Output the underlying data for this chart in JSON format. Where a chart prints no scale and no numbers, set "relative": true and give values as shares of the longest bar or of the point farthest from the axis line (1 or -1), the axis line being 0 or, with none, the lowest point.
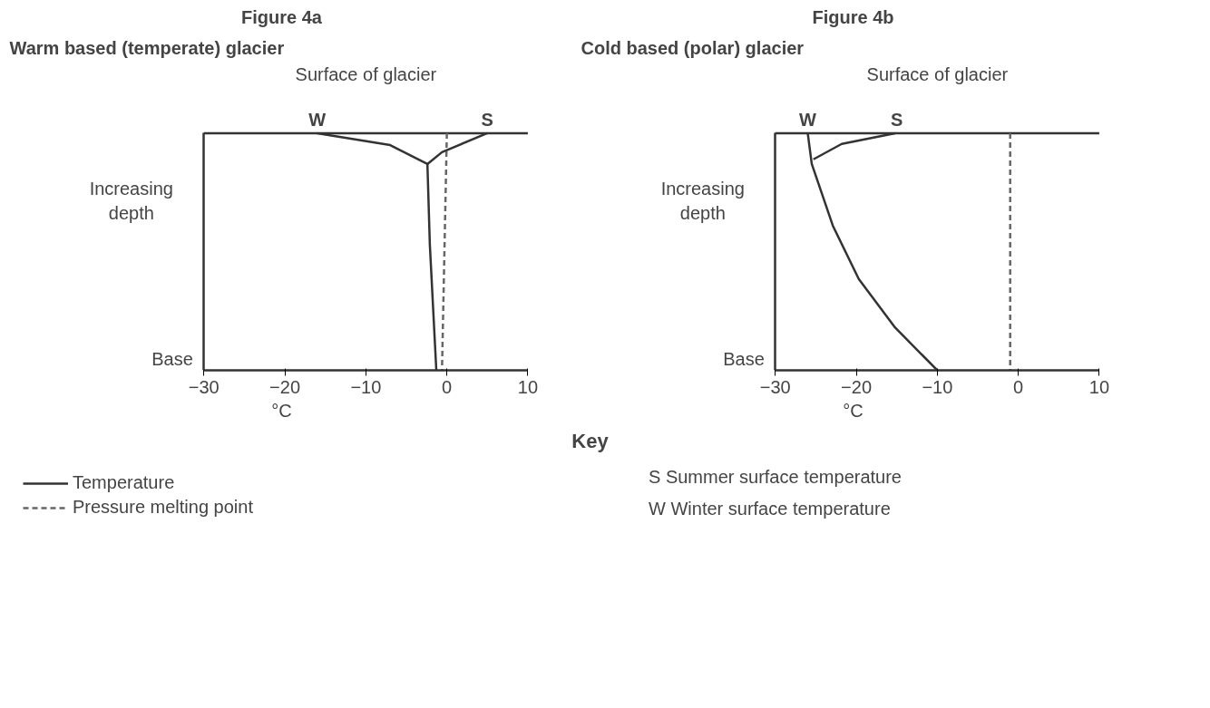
{
  "chart_data": [
    {
      "type": "line",
      "title": "Figure 4a",
      "subtitle": "Warm based (temperate) glacier",
      "xlabel": "°C",
      "ylabel": "Increasing depth",
      "relative": true,
      "xlim": [
        -30,
        10
      ],
      "xticks": [
        -30,
        -20,
        -10,
        0,
        10
      ],
      "tick_labels": "x",
      "legend": "bottom",
      "grid": false,
      "ref_lines": [
        {
          "axis": "y",
          "value": 1,
          "color": "#333333"
        }
      ],
      "annotations": [
        "Surface of glacier",
        {
          "text": "W",
          "x": -16,
          "y": 1
        },
        {
          "text": "S",
          "x": 5,
          "y": 1
        },
        "Base"
      ],
      "series": [
        {
          "name": "Temperature",
          "color": "#333333",
          "line_style": "solid",
          "x": [
            -16,
            -7,
            -2.4,
            -2.1,
            -1.3
          ],
          "values": [
            1,
            0.95,
            0.87,
            0.53,
            0
          ]
        },
        {
          "color": "#333333",
          "line_style": "solid",
          "x": [
            5,
            -0.6,
            -2.4
          ],
          "values": [
            1,
            0.92,
            0.87
          ]
        },
        {
          "name": "Pressure melting point",
          "color": "#666666",
          "line_style": "dashed",
          "x": [
            0,
            -0.6
          ],
          "values": [
            1,
            0
          ]
        }
      ]
    },
    {
      "type": "line",
      "title": "Figure 4b",
      "subtitle": "Cold based (polar) glacier",
      "xlabel": "°C",
      "ylabel": "Increasing depth",
      "relative": true,
      "xlim": [
        -30,
        10
      ],
      "xticks": [
        -30,
        -20,
        -10,
        0,
        10
      ],
      "tick_labels": "x",
      "grid": false,
      "ref_lines": [
        {
          "axis": "y",
          "value": 1,
          "color": "#333333"
        }
      ],
      "annotations": [
        "Surface of glacier",
        {
          "text": "W",
          "x": -26,
          "y": 1
        },
        {
          "text": "S",
          "x": -15,
          "y": 1
        },
        "Base"
      ],
      "series": [
        {
          "color": "#333333",
          "line_style": "solid",
          "x": [
            -26,
            -25.5,
            -22.9,
            -19.7,
            -15.2,
            -10
          ],
          "values": [
            1,
            0.87,
            0.61,
            0.385,
            0.18,
            0
          ]
        },
        {
          "color": "#333333",
          "line_style": "solid",
          "x": [
            -15.2,
            -21.8,
            -25.3
          ],
          "values": [
            1,
            0.955,
            0.89
          ]
        },
        {
          "color": "#666666",
          "line_style": "dashed",
          "x": [
            -1,
            -1
          ],
          "values": [
            1,
            0
          ]
        }
      ]
    },
    {
      "type": "other",
      "title": "Key",
      "annotations": [
        "S Summer surface temperature",
        "W Winter surface temperature"
      ]
    }
  ]
}
